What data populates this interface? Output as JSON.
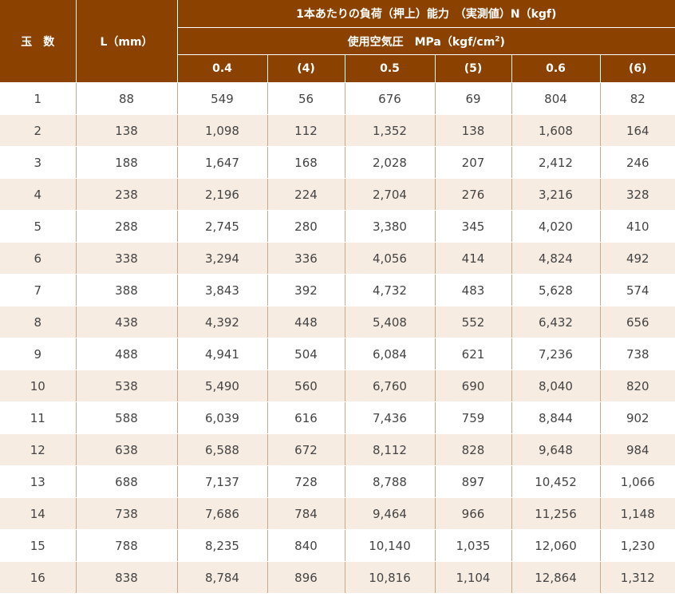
{
  "header": {
    "ball_count": "玉　数",
    "length": "L（mm）",
    "capacity_title": "1本あたりの負荷（押上）能力　（実測値）N（kgf)",
    "pressure_title_prefix": "使用空気圧　MPa（kgf/cm",
    "pressure_title_sup": "2",
    "pressure_title_suffix": ")",
    "pressures": [
      "0.4",
      "(4)",
      "0.5",
      "(5)",
      "0.6",
      "(6)"
    ]
  },
  "rows": [
    [
      "1",
      "88",
      "549",
      "56",
      "676",
      "69",
      "804",
      "82"
    ],
    [
      "2",
      "138",
      "1,098",
      "112",
      "1,352",
      "138",
      "1,608",
      "164"
    ],
    [
      "3",
      "188",
      "1,647",
      "168",
      "2,028",
      "207",
      "2,412",
      "246"
    ],
    [
      "4",
      "238",
      "2,196",
      "224",
      "2,704",
      "276",
      "3,216",
      "328"
    ],
    [
      "5",
      "288",
      "2,745",
      "280",
      "3,380",
      "345",
      "4,020",
      "410"
    ],
    [
      "6",
      "338",
      "3,294",
      "336",
      "4,056",
      "414",
      "4,824",
      "492"
    ],
    [
      "7",
      "388",
      "3,843",
      "392",
      "4,732",
      "483",
      "5,628",
      "574"
    ],
    [
      "8",
      "438",
      "4,392",
      "448",
      "5,408",
      "552",
      "6,432",
      "656"
    ],
    [
      "9",
      "488",
      "4,941",
      "504",
      "6,084",
      "621",
      "7,236",
      "738"
    ],
    [
      "10",
      "538",
      "5,490",
      "560",
      "6,760",
      "690",
      "8,040",
      "820"
    ],
    [
      "11",
      "588",
      "6,039",
      "616",
      "7,436",
      "759",
      "8,844",
      "902"
    ],
    [
      "12",
      "638",
      "6,588",
      "672",
      "8,112",
      "828",
      "9,648",
      "984"
    ],
    [
      "13",
      "688",
      "7,137",
      "728",
      "8,788",
      "897",
      "10,452",
      "1,066"
    ],
    [
      "14",
      "738",
      "7,686",
      "784",
      "9,464",
      "966",
      "11,256",
      "1,148"
    ],
    [
      "15",
      "788",
      "8,235",
      "840",
      "10,140",
      "1,035",
      "12,060",
      "1,230"
    ],
    [
      "16",
      "838",
      "8,784",
      "896",
      "10,816",
      "1,104",
      "12,864",
      "1,312"
    ]
  ]
}
